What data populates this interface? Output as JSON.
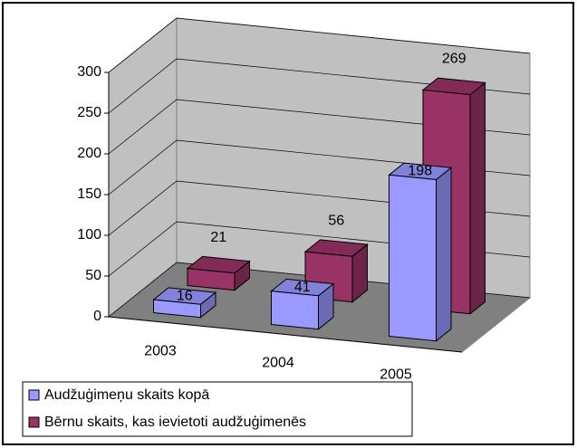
{
  "chart_data": {
    "type": "bar3d",
    "categories": [
      "2003",
      "2004",
      "2005"
    ],
    "series": [
      {
        "name": "Audžuģimeņu skaits kopā",
        "color": "#9999ff",
        "values": [
          16,
          41,
          198
        ]
      },
      {
        "name": "Bērnu skaits, kas ievietoti audžuģimenēs",
        "color": "#993366",
        "values": [
          21,
          56,
          269
        ]
      }
    ],
    "ylim": [
      0,
      300
    ],
    "yticks": [
      0,
      50,
      100,
      150,
      200,
      250,
      300
    ],
    "grid": true,
    "legend": "bottom-left"
  }
}
